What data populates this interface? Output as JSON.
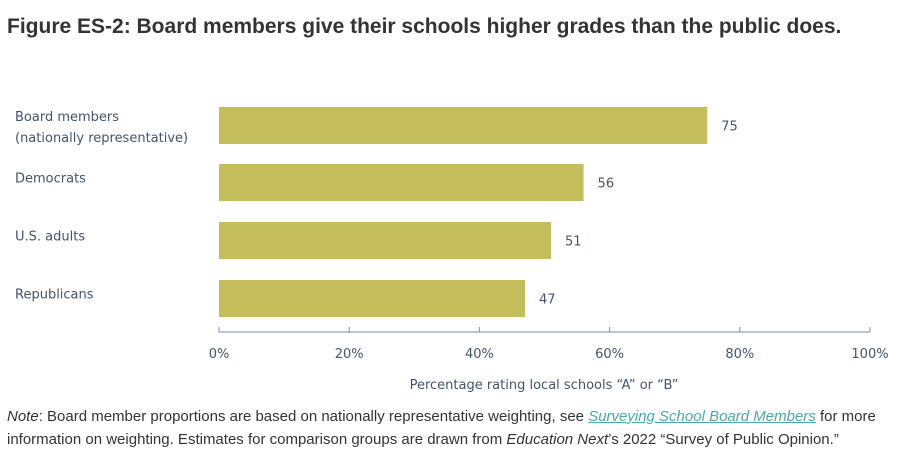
{
  "title": "Figure ES-2: Board members give their schools higher grades than the public does.",
  "chart_data": {
    "type": "bar",
    "orientation": "horizontal",
    "categories": [
      [
        "Board members",
        "(nationally representative)"
      ],
      [
        "Democrats"
      ],
      [
        "U.S. adults"
      ],
      [
        "Republicans"
      ]
    ],
    "values": [
      75,
      56,
      51,
      47
    ],
    "xlabel": "Percentage rating local schools “A” or “B”",
    "xlim": [
      0,
      100
    ],
    "xticks": [
      "0%",
      "20%",
      "40%",
      "60%",
      "80%",
      "100%"
    ],
    "bar_color": "#c4bd5c",
    "grid": false
  },
  "note": {
    "label": "Note",
    "text1": ": Board member proportions are based on nationally representative weighting, see ",
    "link": "Surveying School Board Members",
    "text2": " for more information on weighting. Estimates for comparison groups are drawn from ",
    "pub": "Education Next",
    "text3": "’s 2022 “Survey of Public Opinion.”"
  }
}
